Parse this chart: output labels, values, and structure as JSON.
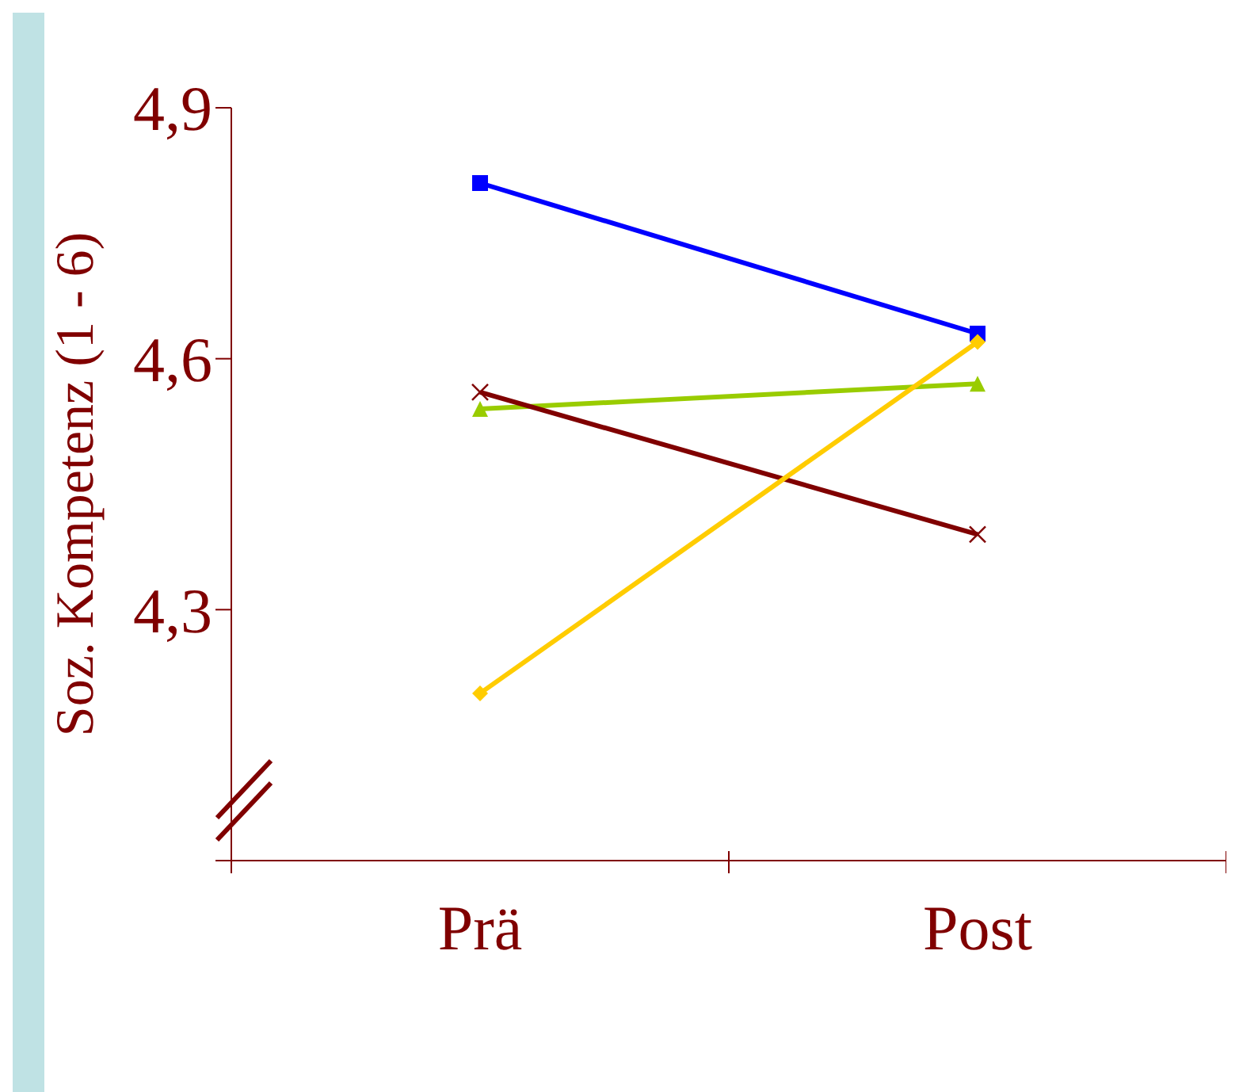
{
  "chart_data": {
    "type": "line",
    "ylabel": "Soz. Kompetenz (1 - 6)",
    "categories": [
      "Prä",
      "Post"
    ],
    "series": [
      {
        "color": "#0000ff",
        "marker": "square",
        "values": [
          4.81,
          4.63
        ]
      },
      {
        "color": "#99cc00",
        "marker": "triangle",
        "values": [
          4.54,
          4.57
        ]
      },
      {
        "color": "#800000",
        "marker": "cross",
        "values": [
          4.56,
          4.39
        ]
      },
      {
        "color": "#ffcc00",
        "marker": "diamond",
        "values": [
          4.2,
          4.62
        ]
      }
    ],
    "ylim": [
      4.0,
      4.9
    ],
    "yticks": [
      {
        "value": 4.0,
        "label": null
      },
      {
        "value": 4.3,
        "label": "4,3"
      },
      {
        "value": 4.6,
        "label": "4,6"
      },
      {
        "value": 4.9,
        "label": "4,9"
      }
    ],
    "grid": false,
    "legend": false
  }
}
